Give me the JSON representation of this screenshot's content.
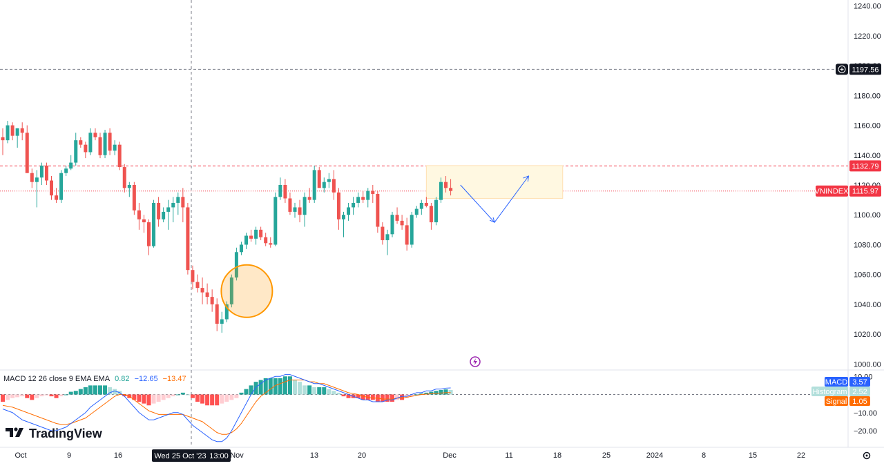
{
  "chart_data": {
    "type": "candlestick",
    "symbol": "VNINDEX",
    "last_price": "1115.97",
    "y_ticks": [
      "1240.00",
      "1220.00",
      "1200.00",
      "1180.00",
      "1160.00",
      "1140.00",
      "1120.00",
      "1100.00",
      "1080.00",
      "1060.00",
      "1040.00",
      "1020.00",
      "1000.00"
    ],
    "ylim": [
      996,
      1244
    ],
    "horizontal_lines": [
      {
        "value": 1197.56,
        "label": "1197.56",
        "style": "dashed",
        "color": "#787b86"
      },
      {
        "value": 1132.79,
        "label": "1132.79",
        "style": "dashed",
        "color": "#f23645"
      },
      {
        "value": 1115.97,
        "label": "1115.97",
        "style": "dotted",
        "color": "#f23645"
      }
    ],
    "crosshair_label": "Wed 25 Oct '23",
    "crosshair_time": "13:00",
    "x_ticks": [
      "Oct",
      "9",
      "16",
      "Nov",
      "13",
      "20",
      "Dec",
      "11",
      "18",
      "25",
      "2024",
      "8",
      "15",
      "22"
    ],
    "candles": [
      [
        1152,
        1158,
        1140,
        1150
      ],
      [
        1150,
        1163,
        1148,
        1160
      ],
      [
        1160,
        1162,
        1150,
        1153
      ],
      [
        1153,
        1158,
        1145,
        1158
      ],
      [
        1158,
        1162,
        1150,
        1155
      ],
      [
        1155,
        1160,
        1128,
        1128
      ],
      [
        1128,
        1131,
        1118,
        1122
      ],
      [
        1122,
        1130,
        1105,
        1125
      ],
      [
        1125,
        1135,
        1120,
        1133
      ],
      [
        1133,
        1135,
        1120,
        1123
      ],
      [
        1123,
        1126,
        1110,
        1113
      ],
      [
        1113,
        1118,
        1108,
        1110
      ],
      [
        1110,
        1130,
        1108,
        1128
      ],
      [
        1128,
        1133,
        1126,
        1131
      ],
      [
        1131,
        1140,
        1130,
        1135
      ],
      [
        1135,
        1155,
        1133,
        1150
      ],
      [
        1150,
        1152,
        1145,
        1147
      ],
      [
        1147,
        1149,
        1138,
        1142
      ],
      [
        1142,
        1158,
        1140,
        1155
      ],
      [
        1155,
        1158,
        1150,
        1152
      ],
      [
        1152,
        1155,
        1138,
        1140
      ],
      [
        1140,
        1157,
        1138,
        1155
      ],
      [
        1155,
        1158,
        1140,
        1143
      ],
      [
        1143,
        1150,
        1140,
        1147
      ],
      [
        1147,
        1149,
        1130,
        1132
      ],
      [
        1132,
        1134,
        1115,
        1118
      ],
      [
        1118,
        1122,
        1112,
        1120
      ],
      [
        1120,
        1122,
        1100,
        1103
      ],
      [
        1103,
        1108,
        1090,
        1097
      ],
      [
        1097,
        1100,
        1088,
        1095
      ],
      [
        1095,
        1097,
        1073,
        1079
      ],
      [
        1079,
        1110,
        1078,
        1108
      ],
      [
        1108,
        1112,
        1092,
        1097
      ],
      [
        1097,
        1105,
        1095,
        1102
      ],
      [
        1102,
        1110,
        1090,
        1105
      ],
      [
        1105,
        1112,
        1095,
        1108
      ],
      [
        1108,
        1115,
        1100,
        1112
      ],
      [
        1112,
        1118,
        1095,
        1105
      ],
      [
        1105,
        1108,
        1060,
        1063
      ],
      [
        1063,
        1066,
        1050,
        1055
      ],
      [
        1055,
        1060,
        1048,
        1051
      ],
      [
        1051,
        1058,
        1040,
        1048
      ],
      [
        1048,
        1054,
        1040,
        1045
      ],
      [
        1045,
        1050,
        1035,
        1040
      ],
      [
        1040,
        1044,
        1022,
        1027
      ],
      [
        1027,
        1035,
        1021,
        1030
      ],
      [
        1030,
        1042,
        1028,
        1040
      ],
      [
        1040,
        1060,
        1038,
        1058
      ],
      [
        1058,
        1078,
        1056,
        1075
      ],
      [
        1075,
        1082,
        1073,
        1080
      ],
      [
        1080,
        1088,
        1077,
        1086
      ],
      [
        1086,
        1090,
        1082,
        1084
      ],
      [
        1084,
        1092,
        1080,
        1090
      ],
      [
        1090,
        1092,
        1083,
        1085
      ],
      [
        1085,
        1088,
        1079,
        1081
      ],
      [
        1081,
        1085,
        1078,
        1080
      ],
      [
        1080,
        1115,
        1079,
        1112
      ],
      [
        1112,
        1125,
        1110,
        1120
      ],
      [
        1120,
        1124,
        1108,
        1111
      ],
      [
        1111,
        1115,
        1100,
        1102
      ],
      [
        1102,
        1108,
        1098,
        1105
      ],
      [
        1105,
        1110,
        1095,
        1100
      ],
      [
        1100,
        1115,
        1092,
        1112
      ],
      [
        1112,
        1118,
        1108,
        1110
      ],
      [
        1110,
        1133,
        1108,
        1130
      ],
      [
        1130,
        1132,
        1120,
        1118
      ],
      [
        1118,
        1125,
        1115,
        1122
      ],
      [
        1122,
        1128,
        1118,
        1124
      ],
      [
        1124,
        1130,
        1110,
        1115
      ],
      [
        1115,
        1118,
        1090,
        1097
      ],
      [
        1097,
        1102,
        1085,
        1100
      ],
      [
        1100,
        1108,
        1096,
        1105
      ],
      [
        1105,
        1112,
        1100,
        1108
      ],
      [
        1108,
        1115,
        1105,
        1112
      ],
      [
        1112,
        1116,
        1108,
        1110
      ],
      [
        1110,
        1118,
        1105,
        1116
      ],
      [
        1116,
        1120,
        1108,
        1114
      ],
      [
        1114,
        1116,
        1088,
        1092
      ],
      [
        1092,
        1095,
        1080,
        1083
      ],
      [
        1083,
        1090,
        1073,
        1087
      ],
      [
        1087,
        1102,
        1085,
        1100
      ],
      [
        1100,
        1105,
        1094,
        1096
      ],
      [
        1096,
        1100,
        1090,
        1093
      ],
      [
        1093,
        1098,
        1076,
        1080
      ],
      [
        1080,
        1102,
        1078,
        1100
      ],
      [
        1100,
        1106,
        1098,
        1104
      ],
      [
        1104,
        1110,
        1100,
        1108
      ],
      [
        1108,
        1112,
        1105,
        1106
      ],
      [
        1106,
        1108,
        1090,
        1095
      ],
      [
        1095,
        1112,
        1093,
        1110
      ],
      [
        1110,
        1125,
        1108,
        1122
      ],
      [
        1122,
        1126,
        1115,
        1118
      ],
      [
        1118,
        1124,
        1113,
        1116
      ]
    ],
    "up_color": "#26a69a",
    "down_color": "#ef5350",
    "annotations": [
      {
        "type": "ellipse",
        "center": {
          "bar": 48,
          "price": 1047
        },
        "color": "#ff9800"
      },
      {
        "type": "rectangle",
        "from": {
          "bar": 87,
          "price": 1133
        },
        "to": {
          "bar": 115,
          "price": 1111
        },
        "color": "#ffe0b2"
      },
      {
        "type": "path",
        "points": [
          {
            "bar": 94,
            "price": 1120
          },
          {
            "bar": 101,
            "price": 1095
          },
          {
            "bar": 108,
            "price": 1126
          }
        ],
        "color": "#2962ff"
      }
    ],
    "macd": {
      "legend_name": "MACD 12 26 close 9 EMA EMA",
      "legend_values": [
        "0.82",
        "−12.65",
        "−13.47"
      ],
      "legend_colors": [
        "#26a69a",
        "#2962ff",
        "#ff6d00"
      ],
      "labels": [
        {
          "name": "MACD",
          "value": "3.57",
          "color": "#2962ff"
        },
        {
          "name": "Histogram",
          "value": "2.52",
          "color": "#b2dfdb"
        },
        {
          "name": "Signal",
          "value": "1.05",
          "color": "#ff6d00"
        }
      ],
      "y_ticks": [
        "10.00",
        "0.00",
        "−10.00",
        "−20.00"
      ],
      "ylim": [
        -28,
        12
      ],
      "histogram": [
        -4,
        -3,
        -2,
        -1.5,
        -1,
        -2,
        -3,
        -2,
        -1,
        -0.5,
        -1,
        -2,
        -1,
        0,
        1.5,
        2,
        3,
        4,
        5,
        5,
        5,
        5,
        4,
        3,
        2,
        -1,
        -2,
        -3,
        -4,
        -5,
        -6,
        -5,
        -4,
        -3,
        -2,
        -1,
        0,
        1,
        0,
        -2,
        -4,
        -5,
        -6,
        -6,
        -6,
        -5,
        -4,
        -3,
        -2,
        1,
        3,
        5,
        7,
        8,
        9,
        9,
        9,
        9,
        10,
        10,
        8,
        7,
        5,
        5,
        4,
        4,
        4,
        3,
        2,
        1,
        -1,
        -2,
        -2,
        -2,
        -3,
        -3,
        -3,
        -4,
        -4,
        -4,
        -4,
        -3,
        -3,
        -2,
        -1,
        0,
        0.5,
        1,
        1.5,
        2,
        2.5,
        2.8,
        2.5
      ],
      "macd_line": [
        -8,
        -9,
        -10,
        -12,
        -14,
        -15,
        -16,
        -17,
        -18,
        -19,
        -20,
        -20,
        -19,
        -18,
        -16,
        -14,
        -12,
        -10,
        -7,
        -5,
        -3,
        -1,
        1,
        2,
        1,
        -1,
        -4,
        -7,
        -10,
        -12,
        -14,
        -14,
        -13,
        -12,
        -11,
        -10,
        -10,
        -11,
        -14,
        -17,
        -19,
        -21,
        -23,
        -25,
        -26,
        -26,
        -24,
        -20,
        -15,
        -10,
        -5,
        0,
        4,
        6,
        8,
        9,
        10,
        10,
        11,
        11,
        10,
        9,
        8,
        7,
        6,
        6,
        5,
        4,
        3,
        2,
        1,
        0,
        -1,
        -2,
        -3,
        -3,
        -4,
        -4,
        -4,
        -3,
        -3,
        -2,
        -1,
        -1,
        0,
        1,
        1,
        2,
        2,
        3,
        3,
        3.5,
        3.6
      ],
      "signal_line": [
        -6,
        -6.5,
        -7,
        -8,
        -9,
        -10,
        -11,
        -12,
        -13,
        -14,
        -15,
        -16,
        -16.5,
        -16.5,
        -16,
        -15,
        -14,
        -13,
        -11,
        -9,
        -7,
        -5,
        -3,
        -1,
        0,
        0,
        -1,
        -3,
        -5,
        -7,
        -9,
        -10,
        -11,
        -11,
        -11,
        -11,
        -11,
        -11,
        -12,
        -13,
        -14,
        -15,
        -17,
        -19,
        -21,
        -22,
        -22,
        -21,
        -19,
        -16,
        -12,
        -8,
        -4,
        -1,
        1,
        3,
        5,
        6,
        7,
        8,
        8,
        8,
        8,
        7,
        7,
        6,
        6,
        5,
        4,
        3,
        2,
        1,
        0.5,
        0,
        -1,
        -1.5,
        -2,
        -2,
        -2.5,
        -2.5,
        -2.5,
        -2,
        -2,
        -1.5,
        -1,
        -0.5,
        0,
        0.2,
        0.4,
        0.6,
        0.8,
        1.0,
        1.05
      ]
    }
  },
  "branding": {
    "name": "TradingView"
  },
  "icons": {
    "plus": "plus-circle-icon",
    "settings": "gear-icon",
    "alert": "lightning-icon"
  }
}
